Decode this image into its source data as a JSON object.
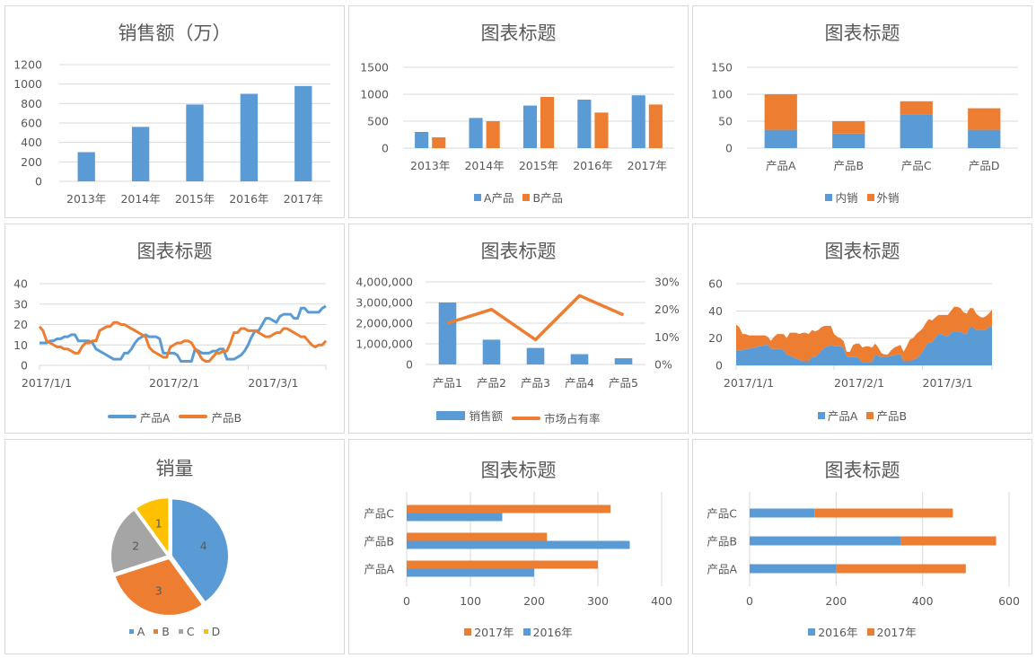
{
  "colors": {
    "blue": "#5B9BD5",
    "orange": "#ED7D31",
    "gray": "#A5A5A5",
    "yellow": "#FFC000",
    "grid": "#D9D9D9",
    "text": "#595959"
  },
  "chart_data": [
    {
      "id": "c1",
      "type": "bar",
      "title": "销售额（万）",
      "categories": [
        "2013年",
        "2014年",
        "2015年",
        "2016年",
        "2017年"
      ],
      "series": [
        {
          "name": "销售额",
          "values": [
            300,
            560,
            790,
            900,
            980
          ],
          "color": "#5B9BD5"
        }
      ],
      "yticks": [
        0,
        200,
        400,
        600,
        800,
        1000,
        1200
      ],
      "ylim": [
        0,
        1200
      ],
      "grid": true,
      "legend": null
    },
    {
      "id": "c2",
      "type": "bar",
      "title": "图表标题",
      "categories": [
        "2013年",
        "2014年",
        "2015年",
        "2016年",
        "2017年"
      ],
      "series": [
        {
          "name": "A产品",
          "values": [
            300,
            560,
            790,
            900,
            980
          ],
          "color": "#5B9BD5"
        },
        {
          "name": "B产品",
          "values": [
            200,
            500,
            950,
            660,
            810
          ],
          "color": "#ED7D31"
        }
      ],
      "yticks": [
        0,
        500,
        1000,
        1500
      ],
      "ylim": [
        0,
        1500
      ],
      "grid": true,
      "legend": "bottom"
    },
    {
      "id": "c3",
      "type": "stacked_bar",
      "title": "图表标题",
      "categories": [
        "产品A",
        "产品B",
        "产品C",
        "产品D"
      ],
      "series": [
        {
          "name": "内销",
          "values": [
            34,
            27,
            63,
            34
          ],
          "color": "#5B9BD5"
        },
        {
          "name": "外销",
          "values": [
            66,
            23,
            24,
            40
          ],
          "color": "#ED7D31"
        }
      ],
      "yticks": [
        0,
        50,
        100,
        150
      ],
      "ylim": [
        0,
        150
      ],
      "grid": true,
      "legend": "bottom"
    },
    {
      "id": "c4",
      "type": "line",
      "title": "图表标题",
      "xticks": [
        "2017/1/1",
        "2017/2/1",
        "2017/3/1"
      ],
      "series": [
        {
          "name": "产品A",
          "color": "#5B9BD5",
          "values": [
            11,
            11,
            11,
            12,
            12,
            13,
            13,
            14,
            14,
            15,
            15,
            12,
            12,
            12,
            12,
            11,
            8,
            7,
            6,
            5,
            4,
            3,
            3,
            3,
            6,
            6,
            8,
            11,
            13,
            14,
            15,
            14,
            14,
            14,
            13,
            6,
            6,
            6,
            6,
            5,
            2,
            2,
            2,
            2,
            8,
            7,
            6,
            6,
            6,
            7,
            7,
            8,
            8,
            3,
            3,
            3,
            4,
            5,
            7,
            10,
            14,
            17,
            17,
            20,
            23,
            23,
            22,
            21,
            24,
            25,
            25,
            25,
            23,
            23,
            28,
            28,
            26,
            26,
            26,
            26,
            28,
            29
          ]
        },
        {
          "name": "产品B",
          "color": "#ED7D31",
          "values": [
            19,
            17,
            12,
            11,
            10,
            9,
            9,
            8,
            8,
            7,
            6,
            6,
            9,
            11,
            11,
            12,
            12,
            17,
            18,
            19,
            19,
            21,
            21,
            20,
            20,
            19,
            18,
            17,
            16,
            15,
            14,
            9,
            7,
            6,
            5,
            4,
            4,
            9,
            10,
            11,
            11,
            12,
            12,
            11,
            8,
            6,
            3,
            2,
            2,
            4,
            6,
            6,
            7,
            7,
            11,
            16,
            16,
            18,
            18,
            17,
            17,
            17,
            16,
            15,
            14,
            14,
            15,
            16,
            16,
            18,
            18,
            17,
            16,
            15,
            14,
            14,
            12,
            10,
            9,
            10,
            10,
            12
          ]
        }
      ],
      "yticks": [
        0,
        10,
        20,
        30,
        40
      ],
      "ylim": [
        0,
        40
      ],
      "grid": true,
      "legend": "bottom"
    },
    {
      "id": "c5",
      "type": "combo_bar_line",
      "title": "图表标题",
      "categories": [
        "产品1",
        "产品2",
        "产品3",
        "产品4",
        "产品5"
      ],
      "series": [
        {
          "name": "销售额",
          "type": "bar",
          "axis": "left",
          "values": [
            3000000,
            1200000,
            800000,
            500000,
            300000
          ],
          "color": "#5B9BD5"
        },
        {
          "name": "市场占有率",
          "type": "line",
          "axis": "right",
          "values": [
            0.15,
            0.2,
            0.09,
            0.25,
            0.18
          ],
          "color": "#ED7D31"
        }
      ],
      "yticks_left": [
        "0",
        "1,000,000",
        "2,000,000",
        "3,000,000",
        "4,000,000"
      ],
      "ylim_left": [
        0,
        4000000
      ],
      "yticks_right": [
        "0%",
        "10%",
        "20%",
        "30%"
      ],
      "ylim_right": [
        0,
        0.3
      ],
      "grid": true,
      "legend": "bottom"
    },
    {
      "id": "c6",
      "type": "stacked_area",
      "title": "图表标题",
      "xticks": [
        "2017/1/1",
        "2017/2/1",
        "2017/3/1"
      ],
      "series": [
        {
          "name": "产品A",
          "color": "#5B9BD5",
          "ref": "c4.series.0"
        },
        {
          "name": "产品B",
          "color": "#ED7D31",
          "ref": "c4.series.1"
        }
      ],
      "yticks": [
        0,
        20,
        40,
        60
      ],
      "ylim": [
        0,
        60
      ],
      "grid": true,
      "legend": "bottom"
    },
    {
      "id": "c7",
      "type": "pie",
      "title": "销量",
      "categories": [
        "A",
        "B",
        "C",
        "D"
      ],
      "values": [
        4,
        3,
        2,
        1
      ],
      "colors": [
        "#5B9BD5",
        "#ED7D31",
        "#A5A5A5",
        "#FFC000"
      ],
      "data_labels": [
        "4",
        "3",
        "2",
        "1"
      ],
      "legend": "bottom"
    },
    {
      "id": "c8",
      "type": "horizontal_bar",
      "title": "图表标题",
      "categories": [
        "产品A",
        "产品B",
        "产品C"
      ],
      "series": [
        {
          "name": "2016年",
          "values": [
            200,
            350,
            150
          ],
          "color": "#5B9BD5"
        },
        {
          "name": "2017年",
          "values": [
            300,
            220,
            320
          ],
          "color": "#ED7D31"
        }
      ],
      "legend_order": [
        "2017年",
        "2016年"
      ],
      "xticks": [
        0,
        100,
        200,
        300,
        400
      ],
      "xlim": [
        0,
        400
      ],
      "grid": true,
      "legend": "bottom"
    },
    {
      "id": "c9",
      "type": "horizontal_stacked_bar",
      "title": "图表标题",
      "categories": [
        "产品A",
        "产品B",
        "产品C"
      ],
      "series": [
        {
          "name": "2016年",
          "values": [
            200,
            350,
            150
          ],
          "color": "#5B9BD5"
        },
        {
          "name": "2017年",
          "values": [
            300,
            220,
            320
          ],
          "color": "#ED7D31"
        }
      ],
      "xticks": [
        0,
        200,
        400,
        600
      ],
      "xlim": [
        0,
        600
      ],
      "grid": true,
      "legend": "bottom"
    }
  ]
}
